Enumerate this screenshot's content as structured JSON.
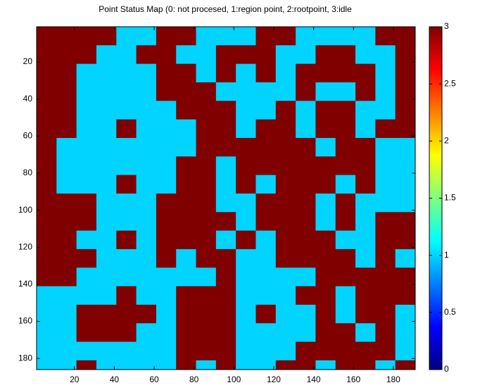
{
  "chart_data": {
    "type": "heatmap",
    "title": "Point Status Map (0: not procesed, 1:region point, 2:rootpoint, 3:idle",
    "x_edges": [
      1,
      11,
      21,
      31,
      41,
      51,
      61,
      71,
      81,
      91,
      101,
      111,
      121,
      131,
      141,
      151,
      161,
      171,
      181,
      191
    ],
    "y_edges": [
      1,
      11,
      21,
      31,
      41,
      51,
      61,
      71,
      81,
      91,
      101,
      111,
      121,
      131,
      141,
      151,
      161,
      171,
      181,
      186
    ],
    "values": [
      [
        3,
        3,
        3,
        3,
        1,
        1,
        3,
        3,
        1,
        1,
        1,
        3,
        3,
        1,
        1,
        1,
        1,
        3,
        3
      ],
      [
        3,
        3,
        3,
        1,
        1,
        3,
        3,
        1,
        1,
        3,
        3,
        3,
        1,
        1,
        3,
        3,
        1,
        1,
        3
      ],
      [
        3,
        3,
        1,
        1,
        1,
        1,
        3,
        3,
        1,
        3,
        1,
        3,
        1,
        3,
        3,
        3,
        3,
        1,
        3
      ],
      [
        3,
        3,
        1,
        1,
        1,
        1,
        3,
        3,
        3,
        1,
        1,
        1,
        1,
        3,
        1,
        1,
        3,
        1,
        3
      ],
      [
        3,
        3,
        1,
        1,
        1,
        1,
        1,
        3,
        3,
        3,
        1,
        1,
        3,
        1,
        3,
        3,
        1,
        1,
        3
      ],
      [
        3,
        3,
        1,
        1,
        3,
        1,
        1,
        1,
        3,
        3,
        1,
        3,
        3,
        1,
        3,
        3,
        1,
        3,
        3
      ],
      [
        3,
        1,
        1,
        1,
        1,
        1,
        1,
        1,
        3,
        3,
        3,
        3,
        3,
        3,
        1,
        3,
        3,
        1,
        1
      ],
      [
        3,
        1,
        1,
        1,
        1,
        1,
        1,
        3,
        3,
        1,
        3,
        3,
        3,
        3,
        3,
        3,
        3,
        1,
        1
      ],
      [
        3,
        1,
        1,
        1,
        3,
        1,
        1,
        3,
        3,
        1,
        3,
        1,
        3,
        3,
        3,
        1,
        3,
        1,
        1
      ],
      [
        3,
        3,
        3,
        1,
        1,
        1,
        3,
        3,
        3,
        1,
        1,
        3,
        3,
        3,
        1,
        3,
        1,
        1,
        1
      ],
      [
        3,
        3,
        3,
        1,
        1,
        1,
        3,
        3,
        3,
        3,
        1,
        3,
        3,
        3,
        1,
        3,
        1,
        3,
        3
      ],
      [
        3,
        3,
        1,
        1,
        3,
        1,
        3,
        3,
        3,
        1,
        3,
        1,
        3,
        3,
        3,
        1,
        1,
        3,
        3
      ],
      [
        3,
        3,
        3,
        1,
        1,
        1,
        3,
        1,
        3,
        3,
        1,
        1,
        3,
        3,
        3,
        3,
        1,
        3,
        1
      ],
      [
        3,
        3,
        1,
        1,
        1,
        1,
        1,
        1,
        1,
        3,
        1,
        1,
        1,
        1,
        3,
        3,
        3,
        3,
        3
      ],
      [
        1,
        1,
        1,
        1,
        3,
        1,
        1,
        3,
        3,
        3,
        1,
        1,
        1,
        3,
        3,
        1,
        3,
        3,
        3
      ],
      [
        1,
        1,
        3,
        3,
        3,
        3,
        1,
        3,
        3,
        3,
        1,
        3,
        1,
        1,
        3,
        1,
        3,
        3,
        1
      ],
      [
        1,
        1,
        3,
        3,
        3,
        1,
        1,
        3,
        3,
        3,
        1,
        1,
        1,
        1,
        3,
        3,
        1,
        3,
        1
      ],
      [
        1,
        1,
        1,
        1,
        1,
        1,
        1,
        3,
        3,
        3,
        1,
        1,
        1,
        3,
        3,
        3,
        3,
        3,
        1
      ],
      [
        1,
        1,
        3,
        1,
        1,
        1,
        1,
        3,
        1,
        3,
        1,
        1,
        3,
        3,
        1,
        3,
        3,
        1,
        3
      ]
    ],
    "xlim": [
      1,
      191
    ],
    "ylim": [
      1,
      186
    ],
    "xticks": [
      20,
      40,
      60,
      80,
      100,
      120,
      140,
      160,
      180
    ],
    "yticks": [
      20,
      40,
      60,
      80,
      100,
      120,
      140,
      160,
      180
    ],
    "y_reversed": true,
    "colormap": "jet",
    "clim": [
      0,
      3
    ],
    "cticks": [
      0,
      0.5,
      1,
      1.5,
      2,
      2.5,
      3
    ]
  }
}
